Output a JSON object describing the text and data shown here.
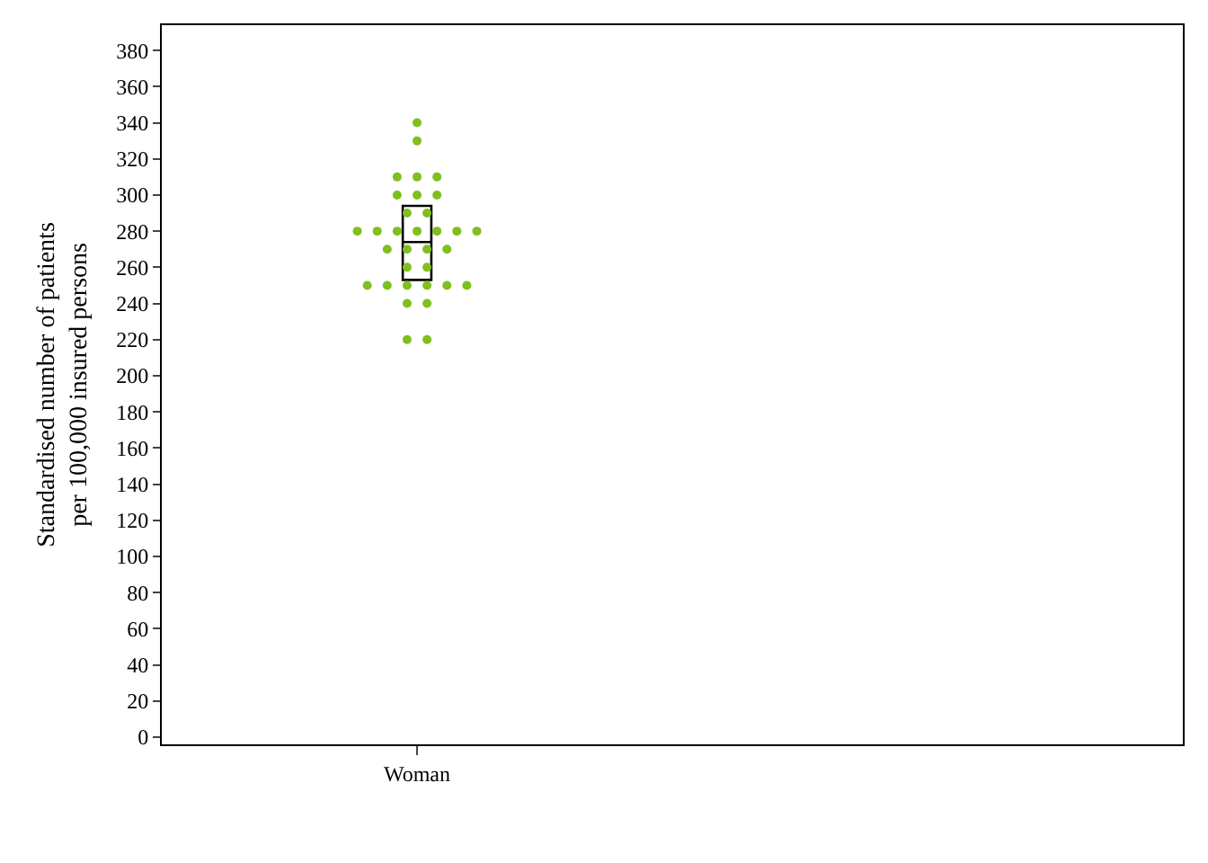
{
  "chart_data": {
    "type": "box",
    "ylabel": "Standardised number of patients\nper 100,000 insured persons",
    "categories": [
      "Woman",
      null
    ],
    "boxes": [
      {
        "q1": 253,
        "median": 274,
        "q3": 294
      },
      null
    ],
    "ylim": [
      -4,
      394
    ],
    "yticks": [
      0,
      20,
      40,
      60,
      80,
      100,
      120,
      140,
      160,
      180,
      200,
      220,
      240,
      260,
      280,
      300,
      320,
      340,
      360,
      380
    ],
    "marker": "circle",
    "series": [
      {
        "type": "scatter",
        "color": "#7fbf1f",
        "x": [
          "Woman",
          "Woman",
          "Woman",
          "Woman",
          "Woman",
          "Woman",
          "Woman",
          "Woman",
          "Woman",
          "Woman",
          "Woman",
          "Woman",
          "Woman",
          "Woman",
          "Woman",
          "Woman",
          "Woman",
          "Woman",
          "Woman",
          "Woman",
          "Woman",
          "Woman",
          "Woman",
          "Woman",
          "Woman",
          "Woman",
          "Woman",
          "Woman",
          "Woman",
          "Woman",
          "Woman",
          "Woman",
          "Woman"
        ],
        "values": [
          340,
          330,
          310,
          310,
          310,
          300,
          300,
          300,
          290,
          290,
          280,
          280,
          280,
          280,
          280,
          280,
          280,
          270,
          270,
          270,
          270,
          260,
          260,
          250,
          250,
          250,
          250,
          250,
          250,
          240,
          240,
          220,
          220
        ]
      }
    ]
  }
}
